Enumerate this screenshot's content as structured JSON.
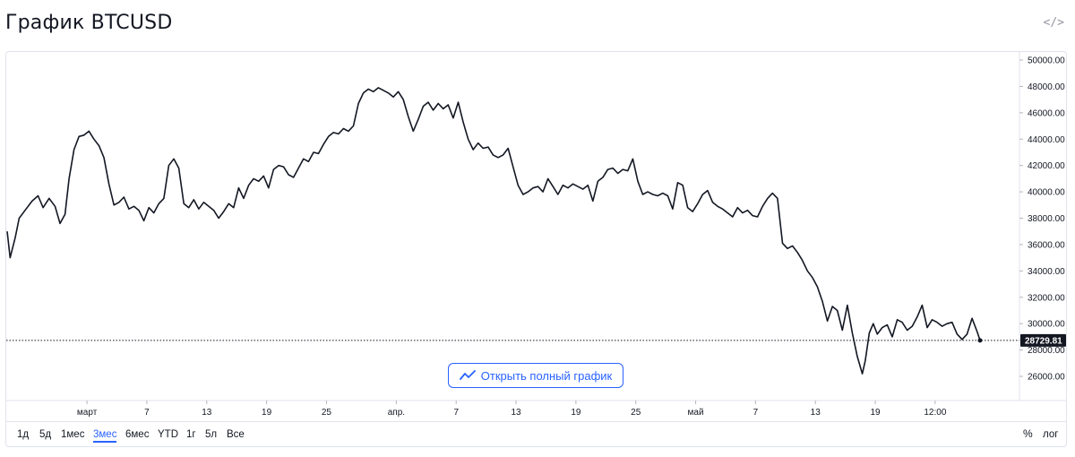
{
  "header": {
    "title": "График BTCUSD",
    "embed_icon": "code-embed-icon",
    "embed_glyph": "</>"
  },
  "open_button": {
    "label": "Открыть полный график",
    "icon": "chart-line-icon",
    "color": "#2962ff"
  },
  "range_buttons": [
    {
      "label": "1д",
      "active": false
    },
    {
      "label": "5д",
      "active": false
    },
    {
      "label": "1мес",
      "active": false
    },
    {
      "label": "3мес",
      "active": true
    },
    {
      "label": "6мес",
      "active": false
    },
    {
      "label": "YTD",
      "active": false
    },
    {
      "label": "1г",
      "active": false
    },
    {
      "label": "5л",
      "active": false
    },
    {
      "label": "Все",
      "active": false
    }
  ],
  "scale_controls": {
    "percent_label": "%",
    "log_label": "лог"
  },
  "chart_data": {
    "type": "line",
    "title": "",
    "xlabel": "",
    "ylabel": "",
    "ylim": [
      25000,
      50500
    ],
    "yticks": [
      "26000.00",
      "28000.00",
      "30000.00",
      "32000.00",
      "34000.00",
      "36000.00",
      "38000.00",
      "40000.00",
      "42000.00",
      "44000.00",
      "46000.00",
      "48000.00",
      "50000.00"
    ],
    "xticks": [
      {
        "label": "март",
        "day": 8
      },
      {
        "label": "7",
        "day": 14
      },
      {
        "label": "13",
        "day": 20
      },
      {
        "label": "19",
        "day": 26
      },
      {
        "label": "25",
        "day": 32
      },
      {
        "label": "апр.",
        "day": 39
      },
      {
        "label": "7",
        "day": 45
      },
      {
        "label": "13",
        "day": 51
      },
      {
        "label": "19",
        "day": 57
      },
      {
        "label": "25",
        "day": 63
      },
      {
        "label": "май",
        "day": 69
      },
      {
        "label": "7",
        "day": 75
      },
      {
        "label": "13",
        "day": 81
      },
      {
        "label": "19",
        "day": 87
      },
      {
        "label": "12:00",
        "day": 93
      }
    ],
    "x_range": [
      0,
      97.5
    ],
    "last_price": "28729.81",
    "last_price_value": 28729.81,
    "line_color": "#131722",
    "grid": false,
    "series": [
      {
        "points": [
          [
            0.0,
            37000
          ],
          [
            0.3,
            35000
          ],
          [
            0.8,
            36500
          ],
          [
            1.2,
            38000
          ],
          [
            1.8,
            38600
          ],
          [
            2.5,
            39300
          ],
          [
            3.1,
            39700
          ],
          [
            3.6,
            38800
          ],
          [
            4.2,
            39500
          ],
          [
            4.8,
            38900
          ],
          [
            5.3,
            37600
          ],
          [
            5.8,
            38300
          ],
          [
            6.2,
            41000
          ],
          [
            6.7,
            43200
          ],
          [
            7.2,
            44200
          ],
          [
            7.7,
            44300
          ],
          [
            8.2,
            44600
          ],
          [
            8.7,
            44000
          ],
          [
            9.2,
            43500
          ],
          [
            9.7,
            42600
          ],
          [
            10.2,
            40600
          ],
          [
            10.7,
            39000
          ],
          [
            11.2,
            39200
          ],
          [
            11.7,
            39600
          ],
          [
            12.2,
            38700
          ],
          [
            12.7,
            38900
          ],
          [
            13.2,
            38600
          ],
          [
            13.7,
            37800
          ],
          [
            14.2,
            38800
          ],
          [
            14.7,
            38400
          ],
          [
            15.2,
            39100
          ],
          [
            15.7,
            39500
          ],
          [
            16.2,
            42000
          ],
          [
            16.7,
            42500
          ],
          [
            17.2,
            41800
          ],
          [
            17.7,
            39100
          ],
          [
            18.2,
            38800
          ],
          [
            18.7,
            39400
          ],
          [
            19.2,
            38700
          ],
          [
            19.7,
            39200
          ],
          [
            20.2,
            38900
          ],
          [
            20.7,
            38600
          ],
          [
            21.2,
            38000
          ],
          [
            21.7,
            38500
          ],
          [
            22.2,
            39100
          ],
          [
            22.7,
            38800
          ],
          [
            23.2,
            40300
          ],
          [
            23.7,
            39500
          ],
          [
            24.2,
            40500
          ],
          [
            24.7,
            41000
          ],
          [
            25.2,
            40800
          ],
          [
            25.7,
            41200
          ],
          [
            26.2,
            40300
          ],
          [
            26.7,
            41700
          ],
          [
            27.2,
            42000
          ],
          [
            27.7,
            41900
          ],
          [
            28.2,
            41300
          ],
          [
            28.7,
            41100
          ],
          [
            29.2,
            41800
          ],
          [
            29.7,
            42500
          ],
          [
            30.2,
            42300
          ],
          [
            30.7,
            43000
          ],
          [
            31.2,
            42900
          ],
          [
            31.7,
            43600
          ],
          [
            32.2,
            44200
          ],
          [
            32.7,
            44500
          ],
          [
            33.2,
            44400
          ],
          [
            33.7,
            44800
          ],
          [
            34.2,
            44600
          ],
          [
            34.7,
            45000
          ],
          [
            35.2,
            46700
          ],
          [
            35.7,
            47500
          ],
          [
            36.2,
            47800
          ],
          [
            36.7,
            47600
          ],
          [
            37.2,
            47900
          ],
          [
            37.7,
            47700
          ],
          [
            38.2,
            47500
          ],
          [
            38.7,
            47200
          ],
          [
            39.2,
            47600
          ],
          [
            39.7,
            47000
          ],
          [
            40.2,
            45700
          ],
          [
            40.7,
            44600
          ],
          [
            41.2,
            45500
          ],
          [
            41.7,
            46500
          ],
          [
            42.2,
            46800
          ],
          [
            42.7,
            46200
          ],
          [
            43.2,
            46700
          ],
          [
            43.7,
            46300
          ],
          [
            44.2,
            46600
          ],
          [
            44.7,
            45600
          ],
          [
            45.2,
            46800
          ],
          [
            45.7,
            45300
          ],
          [
            46.2,
            44000
          ],
          [
            46.7,
            43200
          ],
          [
            47.2,
            43700
          ],
          [
            47.7,
            43300
          ],
          [
            48.2,
            43400
          ],
          [
            48.7,
            42800
          ],
          [
            49.2,
            42600
          ],
          [
            49.7,
            42800
          ],
          [
            50.2,
            43300
          ],
          [
            50.7,
            41900
          ],
          [
            51.2,
            40500
          ],
          [
            51.7,
            39800
          ],
          [
            52.2,
            40000
          ],
          [
            52.7,
            40300
          ],
          [
            53.2,
            40400
          ],
          [
            53.7,
            40000
          ],
          [
            54.2,
            41000
          ],
          [
            54.7,
            40400
          ],
          [
            55.2,
            39800
          ],
          [
            55.7,
            40500
          ],
          [
            56.2,
            40300
          ],
          [
            56.7,
            40600
          ],
          [
            57.2,
            40400
          ],
          [
            57.7,
            40200
          ],
          [
            58.2,
            40500
          ],
          [
            58.7,
            39300
          ],
          [
            59.2,
            40800
          ],
          [
            59.7,
            41100
          ],
          [
            60.2,
            41700
          ],
          [
            60.7,
            41800
          ],
          [
            61.2,
            41400
          ],
          [
            61.7,
            41700
          ],
          [
            62.2,
            41600
          ],
          [
            62.7,
            42500
          ],
          [
            63.2,
            40800
          ],
          [
            63.7,
            39800
          ],
          [
            64.2,
            40000
          ],
          [
            64.7,
            39800
          ],
          [
            65.2,
            39700
          ],
          [
            65.7,
            39900
          ],
          [
            66.2,
            39700
          ],
          [
            66.7,
            38700
          ],
          [
            67.2,
            40700
          ],
          [
            67.7,
            40500
          ],
          [
            68.2,
            38800
          ],
          [
            68.7,
            38500
          ],
          [
            69.2,
            39100
          ],
          [
            69.7,
            39800
          ],
          [
            70.2,
            40100
          ],
          [
            70.7,
            39200
          ],
          [
            71.2,
            38900
          ],
          [
            71.7,
            38700
          ],
          [
            72.2,
            38400
          ],
          [
            72.7,
            38100
          ],
          [
            73.2,
            38800
          ],
          [
            73.7,
            38400
          ],
          [
            74.2,
            38600
          ],
          [
            74.7,
            38200
          ],
          [
            75.2,
            38100
          ],
          [
            75.7,
            38900
          ],
          [
            76.2,
            39500
          ],
          [
            76.7,
            39900
          ],
          [
            77.2,
            39500
          ],
          [
            77.7,
            36100
          ],
          [
            78.2,
            35700
          ],
          [
            78.7,
            35900
          ],
          [
            79.2,
            35400
          ],
          [
            79.7,
            34800
          ],
          [
            80.2,
            34000
          ],
          [
            80.7,
            33500
          ],
          [
            81.2,
            32800
          ],
          [
            81.7,
            31700
          ],
          [
            82.2,
            30200
          ],
          [
            82.7,
            31300
          ],
          [
            83.2,
            31000
          ],
          [
            83.7,
            29500
          ],
          [
            84.2,
            31400
          ],
          [
            84.7,
            29300
          ],
          [
            85.2,
            27500
          ],
          [
            85.7,
            26200
          ],
          [
            86.0,
            27200
          ],
          [
            86.4,
            29300
          ],
          [
            86.8,
            30000
          ],
          [
            87.2,
            29200
          ],
          [
            87.7,
            29700
          ],
          [
            88.2,
            29900
          ],
          [
            88.7,
            29000
          ],
          [
            89.2,
            30300
          ],
          [
            89.7,
            30100
          ],
          [
            90.2,
            29500
          ],
          [
            90.7,
            29800
          ],
          [
            91.2,
            30500
          ],
          [
            91.7,
            31400
          ],
          [
            92.2,
            29700
          ],
          [
            92.7,
            30300
          ],
          [
            93.2,
            30100
          ],
          [
            93.7,
            29800
          ],
          [
            94.2,
            30000
          ],
          [
            94.7,
            30100
          ],
          [
            95.2,
            29200
          ],
          [
            95.7,
            28800
          ],
          [
            96.2,
            29200
          ],
          [
            96.7,
            30400
          ],
          [
            97.2,
            29400
          ],
          [
            97.5,
            28729.81
          ]
        ]
      }
    ]
  }
}
